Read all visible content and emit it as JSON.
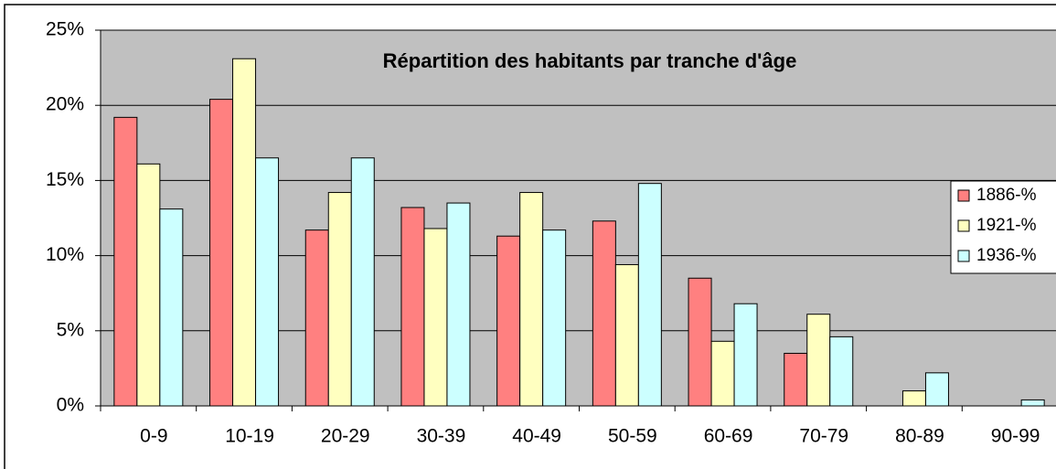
{
  "chart_data": {
    "type": "bar",
    "title": "Répartition des habitants par tranche d'âge",
    "categories": [
      "0-9",
      "10-19",
      "20-29",
      "30-39",
      "40-49",
      "50-59",
      "60-69",
      "70-79",
      "80-89",
      "90-99"
    ],
    "series": [
      {
        "name": "1886-%",
        "color": "#ff8080",
        "values": [
          19.2,
          20.4,
          11.7,
          13.2,
          11.3,
          12.3,
          8.5,
          3.5,
          0,
          0
        ]
      },
      {
        "name": "1921-%",
        "color": "#ffffc0",
        "values": [
          16.1,
          23.1,
          14.2,
          11.8,
          14.2,
          9.4,
          4.3,
          6.1,
          1.0,
          0
        ]
      },
      {
        "name": "1936-%",
        "color": "#ccffff",
        "values": [
          13.1,
          16.5,
          16.5,
          13.5,
          11.7,
          14.8,
          6.8,
          4.6,
          2.2,
          0.4
        ]
      }
    ],
    "ylim": [
      0,
      25
    ],
    "yticks": [
      {
        "value": 0,
        "label": "0%"
      },
      {
        "value": 5,
        "label": "5%"
      },
      {
        "value": 10,
        "label": "10%"
      },
      {
        "value": 15,
        "label": "15%"
      },
      {
        "value": 20,
        "label": "20%"
      },
      {
        "value": 25,
        "label": "25%"
      }
    ],
    "grid": true,
    "legend": "right",
    "background": "#c0c0c0"
  }
}
